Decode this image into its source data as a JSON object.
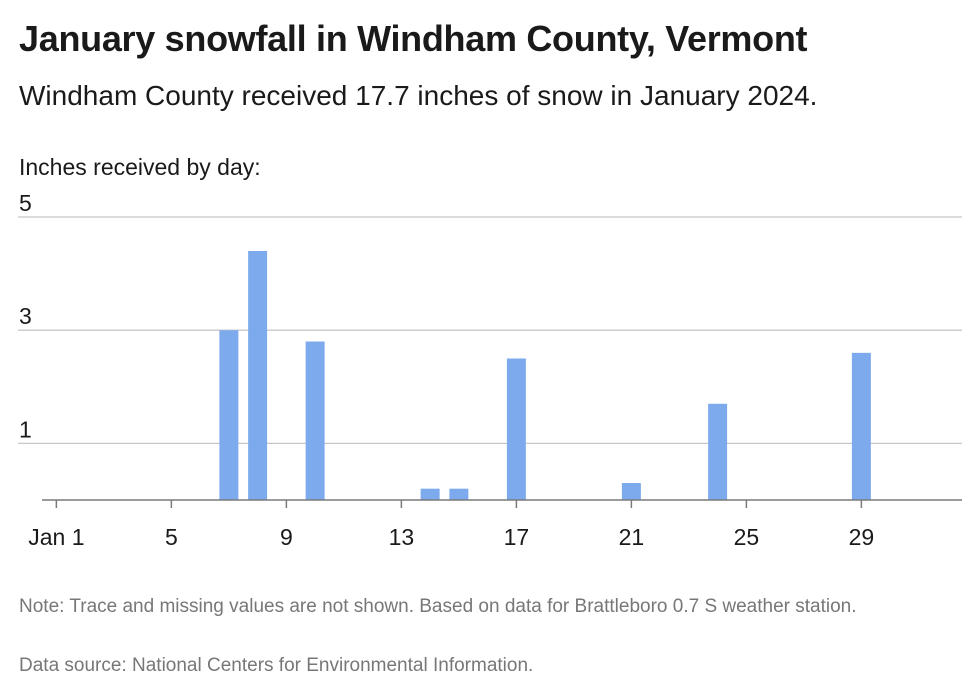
{
  "chart_data": {
    "type": "bar",
    "title": "January snowfall in Windham County, Vermont",
    "subtitle": "Windham County received 17.7 inches of snow in January 2024.",
    "ylabel": "Inches received by day:",
    "xlabel": "",
    "x": [
      7,
      8,
      10,
      14,
      15,
      17,
      21,
      24,
      29
    ],
    "values": [
      3.0,
      4.4,
      2.8,
      0.2,
      0.2,
      2.5,
      0.3,
      1.7,
      2.6
    ],
    "xlim": [
      0.5,
      32.5
    ],
    "ylim": [
      0,
      5
    ],
    "x_ticks": [
      {
        "value": 1,
        "label": "Jan 1"
      },
      {
        "value": 5,
        "label": "5"
      },
      {
        "value": 9,
        "label": "9"
      },
      {
        "value": 13,
        "label": "13"
      },
      {
        "value": 17,
        "label": "17"
      },
      {
        "value": 21,
        "label": "21"
      },
      {
        "value": 25,
        "label": "25"
      },
      {
        "value": 29,
        "label": "29"
      }
    ],
    "y_ticks": [
      {
        "value": 1,
        "label": "1"
      },
      {
        "value": 3,
        "label": "3"
      },
      {
        "value": 5,
        "label": "5"
      }
    ],
    "grid": true,
    "bar_color": "#7daaec"
  },
  "footer": {
    "note": "Note: Trace and missing values are not shown. Based on data for Brattleboro 0.7 S weather station.",
    "source": "Data source: National Centers for Environmental Information."
  }
}
